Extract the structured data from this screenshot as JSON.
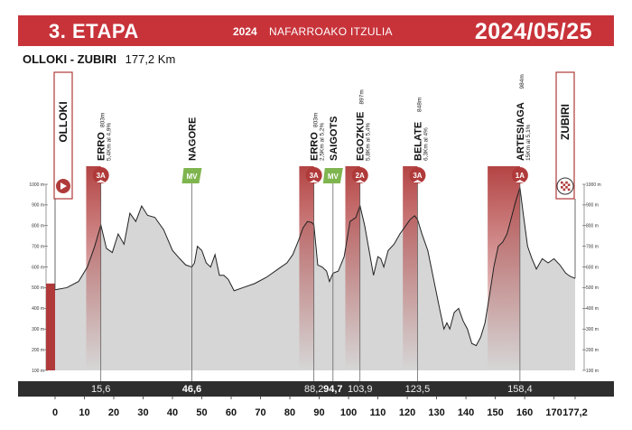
{
  "header": {
    "stage": "3. ETAPA",
    "year": "2024",
    "race": "NAFARROAKO  ITZULIA",
    "date": "2024/05/25"
  },
  "route": {
    "name": "OLLOKI - ZUBIRI",
    "distance": "177,2 Km"
  },
  "colors": {
    "header": "#c8333a",
    "climb": "#b03a3a",
    "sprint": "#7fb54f",
    "band": "#2e2e2e",
    "profile_fill": "#d6d6d6"
  },
  "chart_data": {
    "type": "area",
    "title": "",
    "xlabel": "",
    "ylabel": "",
    "xlim": [
      0,
      177.2
    ],
    "ylim": [
      100,
      1000
    ],
    "x_ticks": [
      0,
      10,
      20,
      30,
      40,
      50,
      60,
      70,
      80,
      90,
      100,
      110,
      120,
      130,
      140,
      150,
      160,
      170,
      177.2
    ],
    "x_tick_labels": [
      "0",
      "10",
      "20",
      "30",
      "40",
      "50",
      "60",
      "70",
      "80",
      "90",
      "100",
      "110",
      "120",
      "130",
      "140",
      "150",
      "160",
      "170",
      "177,2"
    ],
    "y_ticks": [
      100,
      200,
      300,
      400,
      500,
      600,
      700,
      800,
      900,
      1000
    ],
    "y_tick_labels": [
      "100 m",
      "200 m",
      "300 m",
      "400 m",
      "500 m",
      "600 m",
      "700 m",
      "800 m",
      "900 m",
      "1000 m"
    ],
    "profile": {
      "x": [
        0,
        4,
        8,
        11,
        13.5,
        15.6,
        17.5,
        19.5,
        21.5,
        23.5,
        25.5,
        27.5,
        29.5,
        31.5,
        34,
        37,
        40,
        42.5,
        44.5,
        46.6,
        47.5,
        48.5,
        50,
        51.5,
        53,
        54.5,
        56,
        57.5,
        59,
        61,
        64,
        68,
        72,
        76,
        79,
        81,
        83,
        84.5,
        86,
        87.5,
        88.2,
        89.5,
        91,
        92.5,
        93.5,
        94.7,
        96.5,
        98.5,
        100.5,
        102.5,
        103.9,
        105.5,
        107,
        108.5,
        110,
        111,
        112,
        113.5,
        115.5,
        117.5,
        119.5,
        121,
        122.5,
        123.5,
        125,
        127,
        129,
        131,
        132.5,
        133.5,
        134.5,
        136,
        137.5,
        139,
        140.5,
        142,
        143.5,
        145,
        146.5,
        148,
        149.5,
        151,
        152.5,
        154,
        155.5,
        157,
        158.4,
        159.5,
        161,
        162.5,
        164,
        166,
        168,
        170,
        172,
        174,
        175.5,
        177.2
      ],
      "y": [
        490,
        500,
        530,
        600,
        700,
        803,
        690,
        670,
        760,
        710,
        860,
        820,
        895,
        850,
        840,
        780,
        680,
        640,
        610,
        600,
        620,
        700,
        680,
        620,
        600,
        660,
        560,
        560,
        540,
        485,
        500,
        520,
        550,
        590,
        620,
        660,
        730,
        790,
        820,
        815,
        803,
        610,
        600,
        580,
        530,
        570,
        580,
        650,
        820,
        840,
        897,
        800,
        680,
        560,
        650,
        640,
        600,
        680,
        710,
        760,
        800,
        830,
        848,
        830,
        760,
        680,
        540,
        400,
        300,
        330,
        300,
        380,
        400,
        340,
        300,
        230,
        220,
        260,
        330,
        460,
        600,
        700,
        720,
        760,
        840,
        920,
        984,
        860,
        700,
        640,
        590,
        640,
        620,
        640,
        610,
        570,
        555,
        545
      ]
    },
    "annotations": [
      {
        "type": "start",
        "x": 0,
        "label": "OLLOKI"
      },
      {
        "type": "climb",
        "category": "3A",
        "x": 15.6,
        "name": "ERRO",
        "altitude": "803m",
        "detail": "5,4Km al 4,9%"
      },
      {
        "type": "sprint",
        "badge": "MV",
        "x": 46.6,
        "name": "NAGORE"
      },
      {
        "type": "climb",
        "category": "3A",
        "x": 88.2,
        "name": "ERRO",
        "altitude": "803m",
        "detail": "2,5Km al 5,2%"
      },
      {
        "type": "sprint",
        "badge": "MV",
        "x": 94.7,
        "name": "SAIGOTS"
      },
      {
        "type": "climb",
        "category": "2A",
        "x": 103.9,
        "name": "EGOZKUE",
        "altitude": "897m",
        "detail": "5,8Km al 5,4%"
      },
      {
        "type": "climb",
        "category": "3A",
        "x": 123.5,
        "name": "BELATE",
        "altitude": "848m",
        "detail": "6,3Km al 4%"
      },
      {
        "type": "climb",
        "category": "1A",
        "x": 158.4,
        "name": "ARTESIAGA",
        "altitude": "984m",
        "detail": "15Km al 5,1%"
      },
      {
        "type": "finish",
        "x": 177.2,
        "label": "ZUBIRI"
      }
    ],
    "km_markers": [
      {
        "x": 15.6,
        "label": "15,6",
        "bold": false
      },
      {
        "x": 46.6,
        "label": "46,6",
        "bold": true
      },
      {
        "x": 88.2,
        "label": "88,2",
        "bold": false
      },
      {
        "x": 94.7,
        "label": "94,7",
        "bold": true
      },
      {
        "x": 103.9,
        "label": "103,9",
        "bold": false
      },
      {
        "x": 123.5,
        "label": "123,5",
        "bold": false
      },
      {
        "x": 158.4,
        "label": "158,4",
        "bold": false
      }
    ]
  }
}
